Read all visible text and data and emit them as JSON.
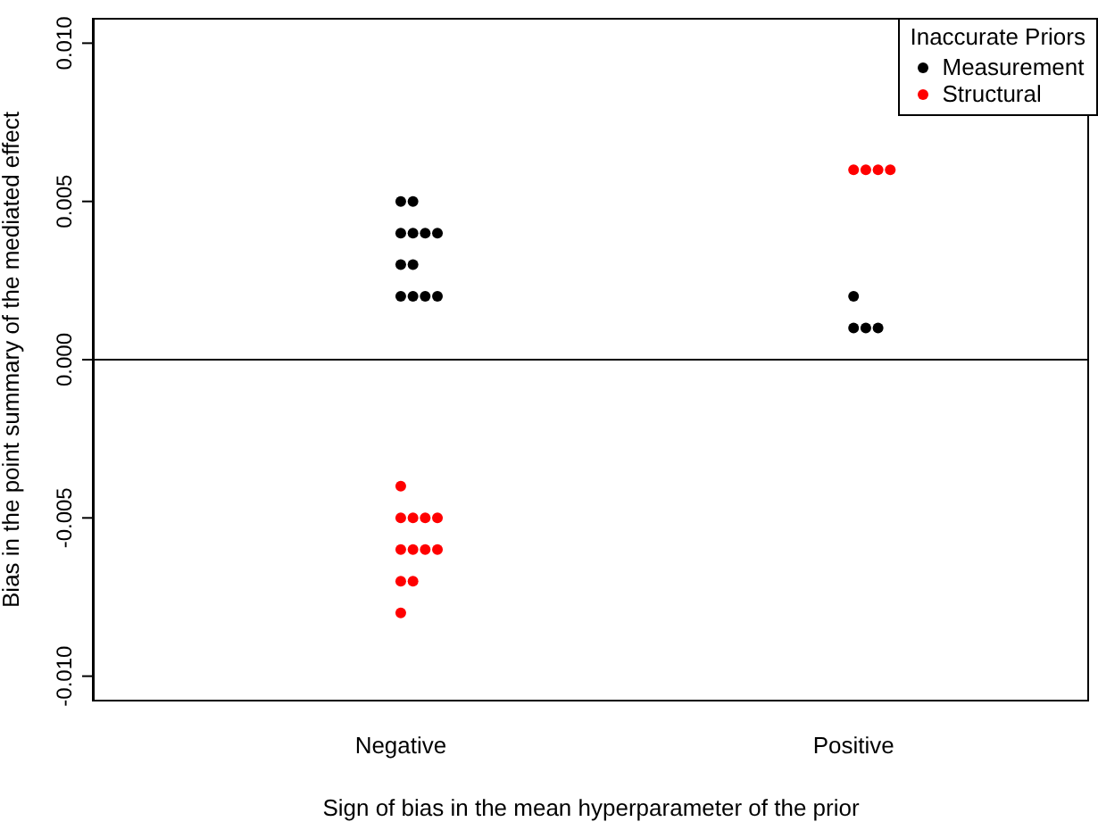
{
  "chart_data": {
    "type": "scatter",
    "xlabel": "Sign of bias in the mean hyperparameter of the prior",
    "ylabel": "Bias in the point summary of the mediated effect",
    "legend_title": "Inaccurate Priors",
    "legend": "top right",
    "marker": "circle",
    "grid": false,
    "categories": [
      "Negative",
      "Positive"
    ],
    "ylim": [
      -0.0108,
      0.0108
    ],
    "yticks": [
      {
        "value": -0.01,
        "label": "-0.010"
      },
      {
        "value": -0.005,
        "label": "-0.005"
      },
      {
        "value": 0,
        "label": "0.000"
      },
      {
        "value": 0.005,
        "label": "0.005"
      },
      {
        "value": 0.01,
        "label": "0.010"
      }
    ],
    "ref_lines": [
      {
        "axis": "y",
        "value": 0,
        "color": "#000000"
      }
    ],
    "series": [
      {
        "name": "Measurement",
        "color": "#000000",
        "x": [
          "Negative",
          "Negative",
          "Negative",
          "Negative",
          "Negative",
          "Negative",
          "Negative",
          "Negative",
          "Negative",
          "Negative",
          "Negative",
          "Negative",
          "Positive",
          "Positive",
          "Positive",
          "Positive"
        ],
        "values": [
          0.005,
          0.005,
          0.004,
          0.004,
          0.004,
          0.004,
          0.003,
          0.003,
          0.002,
          0.002,
          0.002,
          0.002,
          0.002,
          0.001,
          0.001,
          0.001
        ]
      },
      {
        "name": "Structural",
        "color": "#ff0000",
        "x": [
          "Negative",
          "Negative",
          "Negative",
          "Negative",
          "Negative",
          "Negative",
          "Negative",
          "Negative",
          "Negative",
          "Negative",
          "Negative",
          "Negative",
          "Positive",
          "Positive",
          "Positive",
          "Positive"
        ],
        "values": [
          -0.004,
          -0.005,
          -0.005,
          -0.005,
          -0.005,
          -0.006,
          -0.006,
          -0.006,
          -0.006,
          -0.007,
          -0.007,
          -0.008,
          0.006,
          0.006,
          0.006,
          0.006
        ]
      }
    ]
  }
}
